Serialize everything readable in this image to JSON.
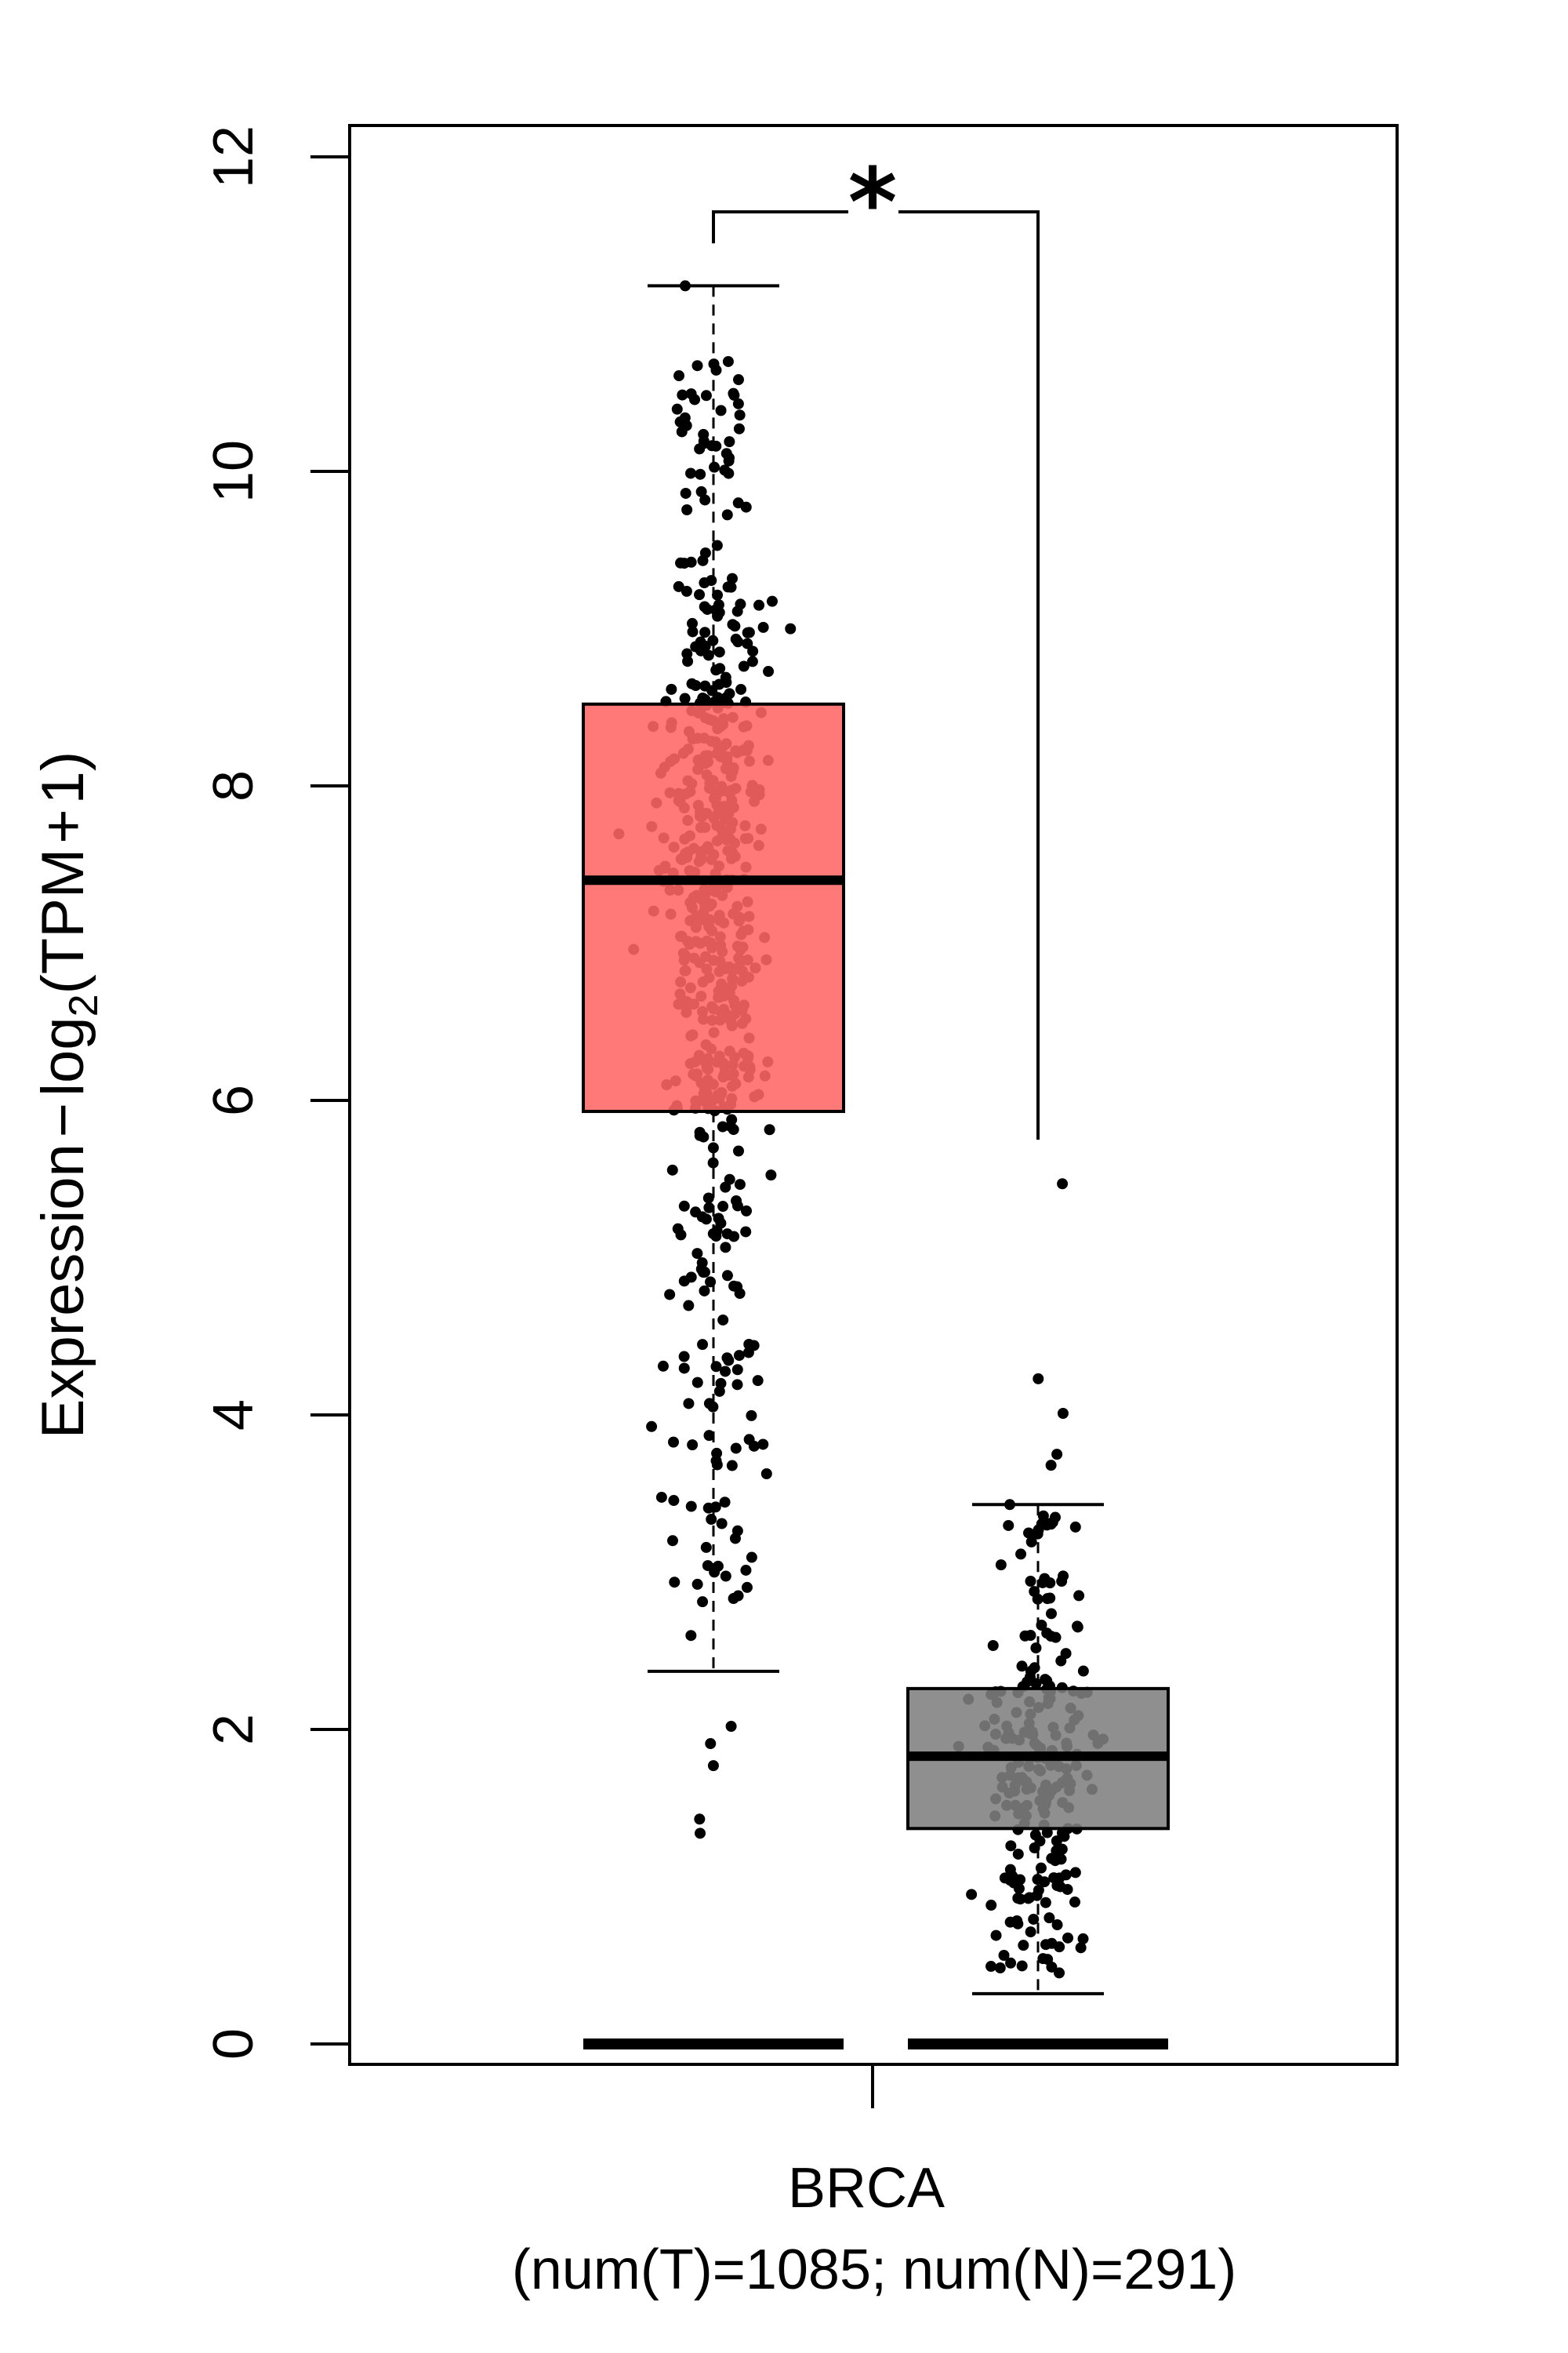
{
  "chart_data": {
    "type": "box",
    "ylabel": {
      "prefix": "Expression",
      "dash": "−",
      "log": "log",
      "subscript": "2",
      "suffix": "(TPM",
      "plus": "+",
      "one": "1)"
    },
    "ylim": [
      -0.3,
      12.3
    ],
    "yticks": [
      0,
      2,
      4,
      6,
      8,
      10,
      12
    ],
    "xlabel": "BRCA",
    "xsublabel": "(num(T)=1085; num(N)=291)",
    "significance": "*",
    "grid": false,
    "colors": {
      "tumor": "#FF6666",
      "normal": "#808080",
      "significance": "#FF0000",
      "points": "#000000"
    },
    "series": [
      {
        "group": "T",
        "count": 1085,
        "whisker_low": 2.37,
        "q1": 5.93,
        "median": 7.4,
        "q3": 8.52,
        "whisker_high": 11.18,
        "zeros": true,
        "outliers_low": [
          2.02,
          1.91,
          1.77,
          1.43,
          1.34
        ]
      },
      {
        "group": "N",
        "count": 291,
        "whisker_low": 0.32,
        "q1": 1.37,
        "median": 1.83,
        "q3": 2.26,
        "whisker_high": 3.43,
        "zeros": true,
        "outliers_high": [
          5.47,
          4.23,
          4.01,
          3.75,
          3.68
        ]
      }
    ]
  }
}
